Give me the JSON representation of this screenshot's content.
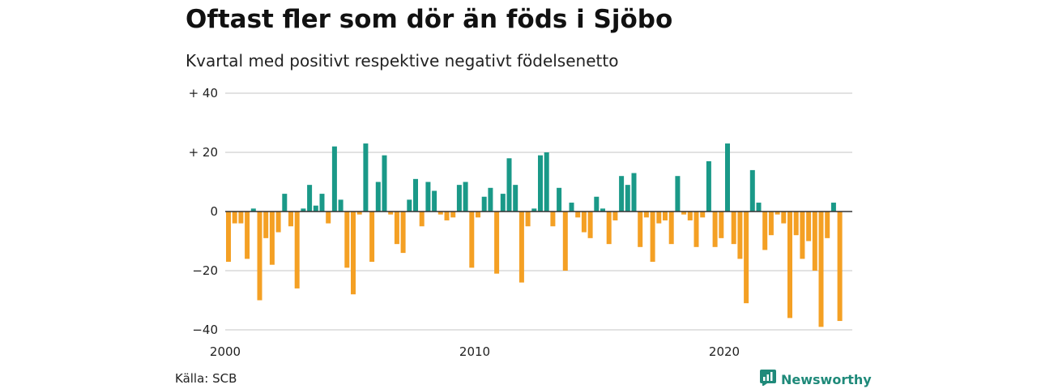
{
  "header": {
    "title": "Oftast fler som dör än föds i Sjöbo",
    "subtitle": "Kvartal med positivt respektive negativt födelsenetto"
  },
  "footer": {
    "source": "Källa: SCB",
    "brand": "Newsworthy",
    "brand_icon": "newsworthy-logo-icon"
  },
  "colors": {
    "positive": "#1a9988",
    "negative": "#f4a024",
    "grid": "#d9d9d9",
    "zero_line": "#333333",
    "brand": "#1f8a7a"
  },
  "chart_data": {
    "type": "bar",
    "title": "Oftast fler som dör än föds i Sjöbo",
    "subtitle": "Kvartal med positivt respektive negativt födelsenetto",
    "x_start": "2000 Q1",
    "x_tick_labels": [
      "2000",
      "2010",
      "2020"
    ],
    "y_ticks": [
      40,
      20,
      0,
      -20,
      -40
    ],
    "y_tick_labels": [
      "+ 40",
      "+ 20",
      "0",
      "−20",
      "−40"
    ],
    "ylim": [
      -40,
      40
    ],
    "grid": true,
    "values": [
      -17,
      -4,
      -4,
      -16,
      1,
      -30,
      -9,
      -18,
      -7,
      6,
      -5,
      -26,
      1,
      9,
      2,
      6,
      -4,
      22,
      4,
      -19,
      -28,
      -1,
      23,
      -17,
      10,
      19,
      -1,
      -11,
      -14,
      4,
      11,
      -5,
      10,
      7,
      -1,
      -3,
      -2,
      9,
      10,
      -19,
      -2,
      5,
      8,
      -21,
      6,
      18,
      9,
      -24,
      -5,
      1,
      19,
      20,
      -5,
      8,
      -20,
      3,
      -2,
      -7,
      -9,
      5,
      1,
      -11,
      -3,
      12,
      9,
      13,
      -12,
      -2,
      -17,
      -4,
      -3,
      -11,
      12,
      -1,
      -3,
      -12,
      -2,
      17,
      -12,
      -9,
      23,
      -11,
      -16,
      -31,
      14,
      3,
      -13,
      -8,
      -1,
      -4,
      -36,
      -8,
      -16,
      -10,
      -20,
      -39,
      -9,
      3,
      -37
    ]
  }
}
